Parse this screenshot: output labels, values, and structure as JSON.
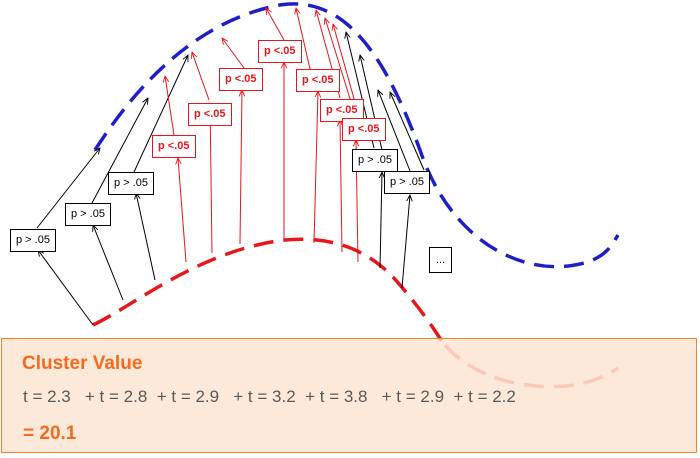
{
  "labels": [
    {
      "text": "p > .05",
      "significant": false
    },
    {
      "text": "p > .05",
      "significant": false
    },
    {
      "text": "p > .05",
      "significant": false
    },
    {
      "text": "p <.05",
      "significant": true
    },
    {
      "text": "p <.05",
      "significant": true
    },
    {
      "text": "p <.05",
      "significant": true
    },
    {
      "text": "p <.05",
      "significant": true
    },
    {
      "text": "p <.05",
      "significant": true
    },
    {
      "text": "p <.05",
      "significant": true
    },
    {
      "text": "p <.05",
      "significant": true
    },
    {
      "text": "p > .05",
      "significant": false
    },
    {
      "text": "p > .05",
      "significant": false
    },
    {
      "text": "...",
      "significant": false
    }
  ],
  "cluster": {
    "title": "Cluster Value",
    "t_values": "t = 2.3   + t = 2.8  + t = 2.9   + t = 3.2  + t = 3.8   + t = 2.9  + t = 2.2",
    "sum": "= 20.1"
  },
  "colors": {
    "upper_curve": "#1f1fc8",
    "lower_curve": "#e8171c",
    "significant": "#e8171c",
    "nonsignificant": "#000000",
    "cluster_text": "#f26b21",
    "cluster_fill": "#fce0ca",
    "cluster_border": "#f08232"
  }
}
